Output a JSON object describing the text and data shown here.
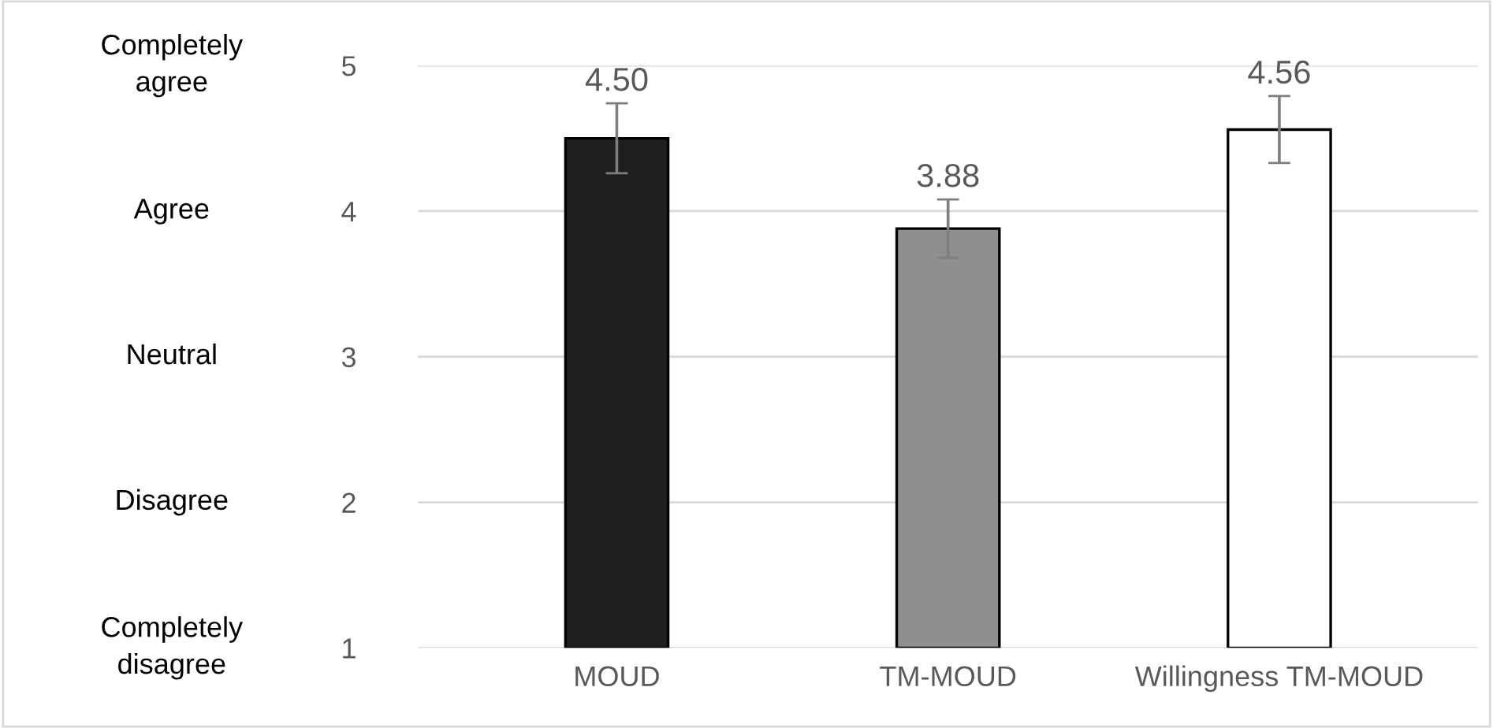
{
  "chart_data": {
    "type": "bar",
    "categories": [
      "MOUD",
      "TM-MOUD",
      "Willingness TM-MOUD"
    ],
    "values": [
      4.5,
      3.88,
      4.56
    ],
    "value_labels": [
      "4.50",
      "3.88",
      "4.56"
    ],
    "colors": [
      "#1f1f1f",
      "#8f8f8f",
      "#ffffff"
    ],
    "errors": [
      0.24,
      0.2,
      0.23
    ],
    "ylim": [
      1,
      5
    ],
    "yticks": [
      1,
      2,
      3,
      4,
      5
    ],
    "annotations": [
      "Completely\ndisagree",
      "Disagree",
      "Neutral",
      "Agree",
      "Completely\nagree"
    ],
    "grid": "y"
  }
}
